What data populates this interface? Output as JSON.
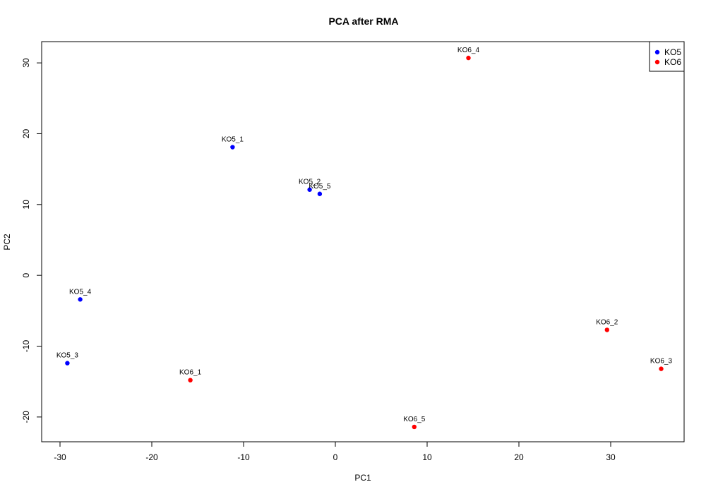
{
  "chart_data": {
    "type": "scatter",
    "title": "PCA after RMA",
    "xlabel": "PC1",
    "ylabel": "PC2",
    "xlim": [
      -32,
      38
    ],
    "ylim": [
      -23.5,
      33
    ],
    "xticks": [
      -30,
      -20,
      -10,
      0,
      10,
      20,
      30
    ],
    "yticks": [
      -20,
      -10,
      0,
      10,
      20,
      30
    ],
    "grid": false,
    "legend_position": "top-right",
    "series": [
      {
        "name": "KO5",
        "color": "#0000ff",
        "points": [
          {
            "label": "KO5_1",
            "x": -11.2,
            "y": 18.1
          },
          {
            "label": "KO5_2",
            "x": -2.8,
            "y": 12.1
          },
          {
            "label": "KO5_5",
            "x": -1.7,
            "y": 11.5
          },
          {
            "label": "KO5_4",
            "x": -27.8,
            "y": -3.4
          },
          {
            "label": "KO5_3",
            "x": -29.2,
            "y": -12.4
          }
        ]
      },
      {
        "name": "KO6",
        "color": "#ff0000",
        "points": [
          {
            "label": "KO6_4",
            "x": 14.5,
            "y": 30.7
          },
          {
            "label": "KO6_2",
            "x": 29.6,
            "y": -7.7
          },
          {
            "label": "KO6_3",
            "x": 35.5,
            "y": -13.2
          },
          {
            "label": "KO6_1",
            "x": -15.8,
            "y": -14.8
          },
          {
            "label": "KO6_5",
            "x": 8.6,
            "y": -21.4
          }
        ]
      }
    ]
  }
}
